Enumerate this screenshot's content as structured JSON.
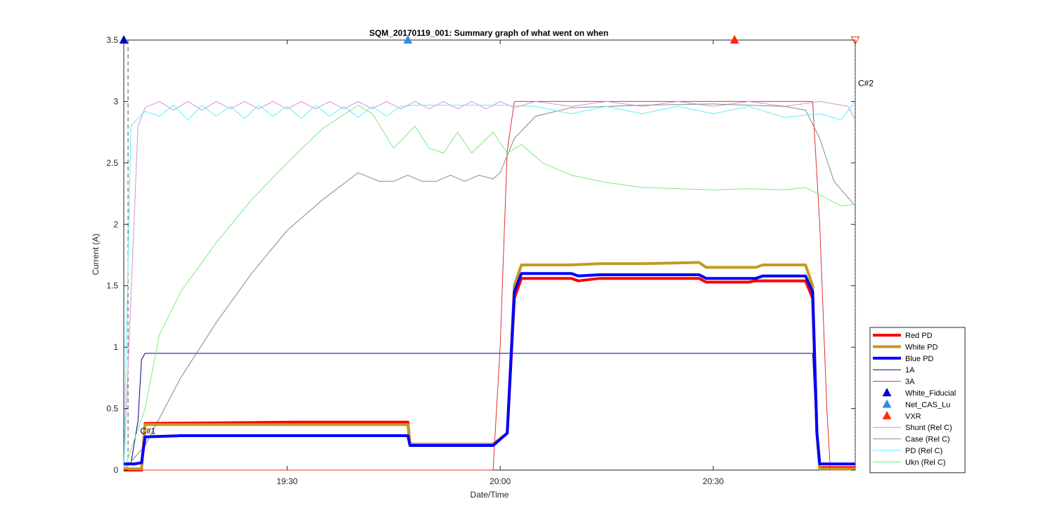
{
  "chart_data": {
    "type": "line",
    "title": "SQM_20170119_001: Summary graph of what went on when",
    "xlabel": "Date/Time",
    "ylabel": "Current (A)",
    "xlim": [
      "19:07",
      "20:50"
    ],
    "ylim": [
      0,
      3.5
    ],
    "xticks": [
      "19:30",
      "20:00",
      "20:30"
    ],
    "yticks": [
      "0",
      "0.5",
      "1",
      "1.5",
      "2",
      "2.5",
      "3",
      "3.5"
    ],
    "grid": false,
    "legend_position": "bottom-right-outside",
    "annotations": [
      {
        "text": "C#1",
        "x": "19:09",
        "y": 0.34
      },
      {
        "text": "C#2",
        "x": "20:50",
        "y": 3.0
      }
    ],
    "series": [
      {
        "name": "Red PD",
        "color": "#ff0000",
        "width": "thick",
        "points": [
          [
            "19:07",
            0.0
          ],
          [
            "19:09.5",
            0.0
          ],
          [
            "19:10",
            0.38
          ],
          [
            "19:31",
            0.39
          ],
          [
            "19:47",
            0.39
          ],
          [
            "19:47.3",
            0.21
          ],
          [
            "19:59",
            0.21
          ],
          [
            "20:01",
            0.3
          ],
          [
            "20:02",
            1.4
          ],
          [
            "20:03",
            1.56
          ],
          [
            "20:10",
            1.56
          ],
          [
            "20:11",
            1.54
          ],
          [
            "20:14",
            1.56
          ],
          [
            "20:28",
            1.56
          ],
          [
            "20:29",
            1.53
          ],
          [
            "20:35",
            1.53
          ],
          [
            "20:36",
            1.54
          ],
          [
            "20:43",
            1.54
          ],
          [
            "20:44",
            1.4
          ],
          [
            "20:44.6",
            0.3
          ],
          [
            "20:45",
            0.02
          ],
          [
            "20:50",
            0.02
          ]
        ]
      },
      {
        "name": "White PD",
        "color": "#c29a24",
        "width": "thick",
        "points": [
          [
            "19:07",
            0.01
          ],
          [
            "19:09.5",
            0.01
          ],
          [
            "19:10",
            0.37
          ],
          [
            "19:47",
            0.37
          ],
          [
            "19:47.3",
            0.21
          ],
          [
            "19:59",
            0.21
          ],
          [
            "20:01",
            0.3
          ],
          [
            "20:02",
            1.5
          ],
          [
            "20:03",
            1.67
          ],
          [
            "20:10",
            1.67
          ],
          [
            "20:14",
            1.68
          ],
          [
            "20:20",
            1.68
          ],
          [
            "20:28",
            1.69
          ],
          [
            "20:29",
            1.65
          ],
          [
            "20:36",
            1.65
          ],
          [
            "20:37",
            1.67
          ],
          [
            "20:43",
            1.67
          ],
          [
            "20:44",
            1.5
          ],
          [
            "20:44.6",
            0.3
          ],
          [
            "20:45",
            0.01
          ],
          [
            "20:50",
            0.01
          ]
        ]
      },
      {
        "name": "Blue PD",
        "color": "#0000ff",
        "width": "thick",
        "points": [
          [
            "19:07",
            0.05
          ],
          [
            "19:08.5",
            0.05
          ],
          [
            "19:09.5",
            0.06
          ],
          [
            "19:10",
            0.27
          ],
          [
            "19:15",
            0.28
          ],
          [
            "19:47",
            0.28
          ],
          [
            "19:47.3",
            0.2
          ],
          [
            "19:59",
            0.2
          ],
          [
            "20:01",
            0.3
          ],
          [
            "20:02",
            1.45
          ],
          [
            "20:03",
            1.6
          ],
          [
            "20:10",
            1.6
          ],
          [
            "20:11",
            1.58
          ],
          [
            "20:14",
            1.59
          ],
          [
            "20:28",
            1.59
          ],
          [
            "20:29",
            1.56
          ],
          [
            "20:36",
            1.56
          ],
          [
            "20:37",
            1.58
          ],
          [
            "20:43",
            1.58
          ],
          [
            "20:44",
            1.45
          ],
          [
            "20:44.6",
            0.3
          ],
          [
            "20:45",
            0.05
          ],
          [
            "20:50",
            0.05
          ]
        ]
      },
      {
        "name": "1A",
        "color": "#00008b",
        "width": "thin",
        "points": [
          [
            "19:07",
            0.05
          ],
          [
            "19:08",
            0.05
          ],
          [
            "19:09",
            0.4
          ],
          [
            "19:09.5",
            0.9
          ],
          [
            "19:10",
            0.95
          ],
          [
            "20:44",
            0.95
          ],
          [
            "20:44.5",
            0.3
          ],
          [
            "20:45",
            0.0
          ],
          [
            "20:50",
            0.0
          ]
        ]
      },
      {
        "name": "3A",
        "color": "#e03030",
        "width": "thin",
        "points": [
          [
            "19:07",
            0.0
          ],
          [
            "19:59",
            0.0
          ],
          [
            "20:00",
            1.0
          ],
          [
            "20:01",
            2.6
          ],
          [
            "20:02",
            3.0
          ],
          [
            "20:44",
            3.0
          ],
          [
            "20:45",
            2.0
          ],
          [
            "20:46",
            0.5
          ],
          [
            "20:46.5",
            0.0
          ],
          [
            "20:50",
            0.0
          ]
        ]
      },
      {
        "name": "White_Fiducial",
        "color": "#0000cc",
        "marker": "triangle-up",
        "points": [
          [
            "19:07",
            3.5
          ]
        ]
      },
      {
        "name": "Net_CAS_Lu",
        "color": "#2d8ce6",
        "marker": "triangle-up",
        "points": [
          [
            "19:47",
            3.5
          ],
          [
            "20:33",
            3.5
          ]
        ]
      },
      {
        "name": "VXR",
        "color": "#ff2a00",
        "marker": "triangle-up",
        "points": [
          [
            "20:33",
            3.5
          ]
        ]
      },
      {
        "name": "Shunt (Rel C)",
        "color": "#d58fd9",
        "width": "thin",
        "points": [
          [
            "19:07",
            0.0
          ],
          [
            "19:09",
            2.8
          ],
          [
            "19:10",
            2.95
          ],
          [
            "19:12",
            3.0
          ],
          [
            "19:14",
            2.93
          ],
          [
            "19:16",
            3.0
          ],
          [
            "19:18",
            2.93
          ],
          [
            "19:20",
            3.0
          ],
          [
            "19:22",
            2.94
          ],
          [
            "19:24",
            3.0
          ],
          [
            "19:26",
            2.94
          ],
          [
            "19:28",
            3.0
          ],
          [
            "19:30",
            2.94
          ],
          [
            "19:32",
            3.0
          ],
          [
            "19:34",
            2.94
          ],
          [
            "19:36",
            3.0
          ],
          [
            "19:38",
            2.94
          ],
          [
            "19:40",
            3.0
          ],
          [
            "19:42",
            2.94
          ],
          [
            "19:44",
            3.0
          ],
          [
            "19:46",
            2.94
          ],
          [
            "19:48",
            3.0
          ],
          [
            "19:50",
            2.94
          ],
          [
            "19:52",
            3.0
          ],
          [
            "19:54",
            2.94
          ],
          [
            "19:56",
            3.0
          ],
          [
            "19:58",
            2.94
          ],
          [
            "20:00",
            3.0
          ],
          [
            "20:02",
            2.95
          ],
          [
            "20:05",
            3.0
          ],
          [
            "20:10",
            2.96
          ],
          [
            "20:15",
            3.0
          ],
          [
            "20:20",
            2.96
          ],
          [
            "20:25",
            3.0
          ],
          [
            "20:30",
            2.96
          ],
          [
            "20:35",
            3.0
          ],
          [
            "20:40",
            2.96
          ],
          [
            "20:45",
            3.0
          ],
          [
            "20:49",
            2.96
          ],
          [
            "20:50",
            2.85
          ]
        ]
      },
      {
        "name": "Case (Rel C)",
        "color": "#888888",
        "width": "thin",
        "points": [
          [
            "19:07",
            0.0
          ],
          [
            "19:10",
            0.2
          ],
          [
            "19:15",
            0.75
          ],
          [
            "19:20",
            1.2
          ],
          [
            "19:25",
            1.6
          ],
          [
            "19:30",
            1.95
          ],
          [
            "19:35",
            2.2
          ],
          [
            "19:40",
            2.42
          ],
          [
            "19:43",
            2.35
          ],
          [
            "19:45",
            2.35
          ],
          [
            "19:47",
            2.4
          ],
          [
            "19:49",
            2.35
          ],
          [
            "19:51",
            2.35
          ],
          [
            "19:53",
            2.4
          ],
          [
            "19:55",
            2.35
          ],
          [
            "19:57",
            2.4
          ],
          [
            "19:59",
            2.37
          ],
          [
            "20:00",
            2.42
          ],
          [
            "20:02",
            2.7
          ],
          [
            "20:05",
            2.88
          ],
          [
            "20:10",
            2.95
          ],
          [
            "20:20",
            2.97
          ],
          [
            "20:30",
            2.98
          ],
          [
            "20:40",
            2.96
          ],
          [
            "20:43",
            2.93
          ],
          [
            "20:45",
            2.7
          ],
          [
            "20:47",
            2.35
          ],
          [
            "20:50",
            2.15
          ]
        ]
      },
      {
        "name": "PD (Rel C)",
        "color": "#5ff0f0",
        "width": "thin",
        "points": [
          [
            "19:07",
            0.0
          ],
          [
            "19:08",
            2.8
          ],
          [
            "19:10",
            2.92
          ],
          [
            "19:12",
            2.88
          ],
          [
            "19:14",
            2.97
          ],
          [
            "19:16",
            2.85
          ],
          [
            "19:18",
            2.97
          ],
          [
            "19:20",
            2.88
          ],
          [
            "19:22",
            2.96
          ],
          [
            "19:24",
            2.86
          ],
          [
            "19:26",
            2.97
          ],
          [
            "19:28",
            2.88
          ],
          [
            "19:30",
            2.96
          ],
          [
            "19:32",
            2.86
          ],
          [
            "19:34",
            2.97
          ],
          [
            "19:36",
            2.88
          ],
          [
            "19:38",
            2.96
          ],
          [
            "19:40",
            2.87
          ],
          [
            "19:42",
            2.96
          ],
          [
            "19:44",
            2.88
          ],
          [
            "19:46",
            2.96
          ],
          [
            "19:48",
            2.97
          ],
          [
            "20:00",
            2.97
          ],
          [
            "20:05",
            2.96
          ],
          [
            "20:10",
            2.9
          ],
          [
            "20:15",
            2.96
          ],
          [
            "20:20",
            2.9
          ],
          [
            "20:25",
            2.96
          ],
          [
            "20:30",
            2.9
          ],
          [
            "20:35",
            2.96
          ],
          [
            "20:40",
            2.87
          ],
          [
            "20:45",
            2.9
          ],
          [
            "20:48",
            2.85
          ],
          [
            "20:50",
            3.0
          ]
        ]
      },
      {
        "name": "Ukn (Rel C)",
        "color": "#7aeb7a",
        "width": "thin",
        "points": [
          [
            "19:07",
            0.0
          ],
          [
            "19:10",
            0.5
          ],
          [
            "19:12",
            1.1
          ],
          [
            "19:15",
            1.45
          ],
          [
            "19:20",
            1.85
          ],
          [
            "19:25",
            2.2
          ],
          [
            "19:30",
            2.5
          ],
          [
            "19:35",
            2.78
          ],
          [
            "19:40",
            2.97
          ],
          [
            "19:42",
            2.9
          ],
          [
            "19:45",
            2.62
          ],
          [
            "19:48",
            2.8
          ],
          [
            "19:50",
            2.62
          ],
          [
            "19:52",
            2.58
          ],
          [
            "19:54",
            2.75
          ],
          [
            "19:56",
            2.58
          ],
          [
            "19:59",
            2.75
          ],
          [
            "20:01",
            2.58
          ],
          [
            "20:03",
            2.65
          ],
          [
            "20:06",
            2.5
          ],
          [
            "20:10",
            2.4
          ],
          [
            "20:15",
            2.34
          ],
          [
            "20:20",
            2.3
          ],
          [
            "20:25",
            2.29
          ],
          [
            "20:30",
            2.28
          ],
          [
            "20:35",
            2.29
          ],
          [
            "20:40",
            2.28
          ],
          [
            "20:43",
            2.3
          ],
          [
            "20:45",
            2.24
          ],
          [
            "20:48",
            2.15
          ],
          [
            "20:50",
            2.16
          ]
        ]
      }
    ]
  }
}
